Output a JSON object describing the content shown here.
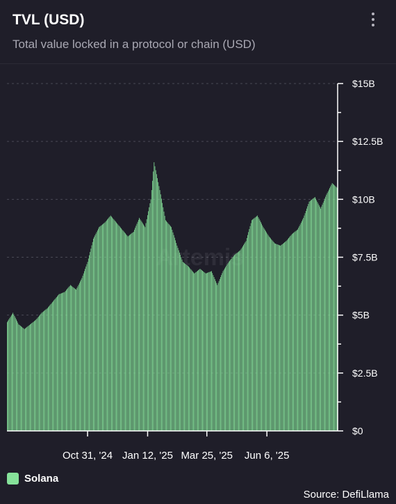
{
  "header": {
    "title": "TVL (USD)",
    "subtitle": "Total value locked in a protocol or chain (USD)"
  },
  "watermark": "Artemis",
  "source": "Source: DefiLlama",
  "colors": {
    "background": "#1f1e29",
    "series": "#86e29a",
    "grid": "#4a4a55"
  },
  "chart_data": {
    "type": "bar",
    "series": [
      {
        "name": "Solana",
        "color": "#86e29a",
        "points": [
          [
            "2024-07-25",
            4.7
          ],
          [
            "2024-08-01",
            5.1
          ],
          [
            "2024-08-08",
            4.6
          ],
          [
            "2024-08-15",
            4.4
          ],
          [
            "2024-08-22",
            4.6
          ],
          [
            "2024-08-29",
            4.8
          ],
          [
            "2024-09-05",
            5.1
          ],
          [
            "2024-09-12",
            5.3
          ],
          [
            "2024-09-19",
            5.6
          ],
          [
            "2024-09-26",
            5.9
          ],
          [
            "2024-10-03",
            6.0
          ],
          [
            "2024-10-10",
            6.3
          ],
          [
            "2024-10-17",
            6.1
          ],
          [
            "2024-10-24",
            6.6
          ],
          [
            "2024-10-31",
            7.3
          ],
          [
            "2024-11-07",
            8.3
          ],
          [
            "2024-11-14",
            8.8
          ],
          [
            "2024-11-21",
            9.0
          ],
          [
            "2024-11-28",
            9.3
          ],
          [
            "2024-12-05",
            9.0
          ],
          [
            "2024-12-12",
            8.7
          ],
          [
            "2024-12-19",
            8.4
          ],
          [
            "2024-12-26",
            8.6
          ],
          [
            "2025-01-02",
            9.2
          ],
          [
            "2025-01-09",
            8.8
          ],
          [
            "2025-01-16",
            10.0
          ],
          [
            "2025-01-20",
            11.6
          ],
          [
            "2025-01-27",
            10.4
          ],
          [
            "2025-02-03",
            9.1
          ],
          [
            "2025-02-10",
            8.8
          ],
          [
            "2025-02-17",
            8.0
          ],
          [
            "2025-02-24",
            7.3
          ],
          [
            "2025-03-03",
            7.1
          ],
          [
            "2025-03-10",
            6.8
          ],
          [
            "2025-03-17",
            7.0
          ],
          [
            "2025-03-24",
            6.8
          ],
          [
            "2025-03-31",
            6.9
          ],
          [
            "2025-04-07",
            6.3
          ],
          [
            "2025-04-14",
            6.9
          ],
          [
            "2025-04-21",
            7.3
          ],
          [
            "2025-04-28",
            7.6
          ],
          [
            "2025-05-05",
            7.8
          ],
          [
            "2025-05-12",
            8.2
          ],
          [
            "2025-05-19",
            9.1
          ],
          [
            "2025-05-26",
            9.3
          ],
          [
            "2025-06-02",
            8.8
          ],
          [
            "2025-06-09",
            8.4
          ],
          [
            "2025-06-16",
            8.1
          ],
          [
            "2025-06-23",
            8.0
          ],
          [
            "2025-06-30",
            8.2
          ],
          [
            "2025-07-07",
            8.5
          ],
          [
            "2025-07-14",
            8.7
          ],
          [
            "2025-07-21",
            9.2
          ],
          [
            "2025-07-28",
            9.9
          ],
          [
            "2025-08-04",
            10.1
          ],
          [
            "2025-08-11",
            9.6
          ],
          [
            "2025-08-18",
            10.2
          ],
          [
            "2025-08-25",
            10.7
          ],
          [
            "2025-08-31",
            10.5
          ]
        ]
      }
    ],
    "x_ticks": [
      "Oct 31, '24",
      "Jan 12, '25",
      "Mar 25, '25",
      "Jun 6, '25"
    ],
    "x_tick_dates": [
      "2024-10-31",
      "2025-01-12",
      "2025-03-25",
      "2025-06-06"
    ],
    "x_range": [
      "2024-07-25",
      "2025-08-31"
    ],
    "y_ticks": [
      "$0",
      "$2.5B",
      "$5B",
      "$7.5B",
      "$10B",
      "$12.5B",
      "$15B"
    ],
    "y_tick_values": [
      0,
      2.5,
      5,
      7.5,
      10,
      12.5,
      15
    ],
    "ylim": [
      0,
      15
    ],
    "y_unit": "billions USD",
    "y_axis_side": "right",
    "grid": "horizontal dashed",
    "legend_position": "bottom-left"
  }
}
